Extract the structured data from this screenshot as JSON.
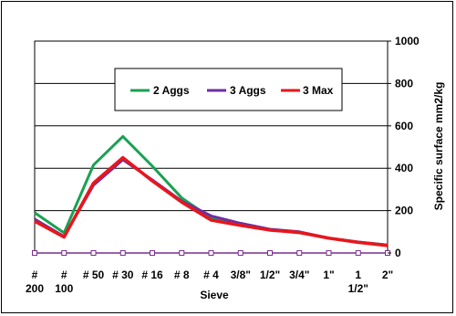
{
  "chart_data": {
    "type": "line",
    "xlabel": "Sieve",
    "ylabel": "Specific surface mm2/kg",
    "ylim": [
      0,
      1000
    ],
    "yticks": [
      0,
      200,
      400,
      600,
      800,
      1000
    ],
    "grid": true,
    "legend_placement": "top-center",
    "categories": [
      "# 200",
      "# 100",
      "# 50",
      "# 30",
      "# 16",
      "# 8",
      "# 4",
      "3/8\"",
      "1/2\"",
      "3/4\"",
      "1\"",
      "1 1/2\"",
      "2\""
    ],
    "category_lines": [
      [
        "#",
        "200"
      ],
      [
        "#",
        "100"
      ],
      [
        "# 50"
      ],
      [
        "# 30"
      ],
      [
        "# 16"
      ],
      [
        "# 8"
      ],
      [
        "# 4"
      ],
      [
        "3/8\""
      ],
      [
        "1/2\""
      ],
      [
        "3/4\""
      ],
      [
        "1\""
      ],
      [
        "1",
        "1/2\""
      ],
      [
        "2\""
      ]
    ],
    "series": [
      {
        "name": "2 Aggs",
        "color": "#1aa152",
        "values": [
          190,
          95,
          415,
          550,
          410,
          260,
          165,
          140,
          110,
          95,
          70,
          52,
          38
        ]
      },
      {
        "name": "3 Aggs",
        "color": "#6e2ea3",
        "values": [
          160,
          78,
          320,
          440,
          345,
          245,
          175,
          140,
          112,
          100,
          70,
          52,
          37
        ]
      },
      {
        "name": "3 Max",
        "color": "#e8161b",
        "values": [
          150,
          75,
          330,
          450,
          340,
          240,
          155,
          130,
          108,
          97,
          70,
          50,
          35
        ]
      }
    ],
    "baseline_marker_color": "#7a2e8e"
  }
}
